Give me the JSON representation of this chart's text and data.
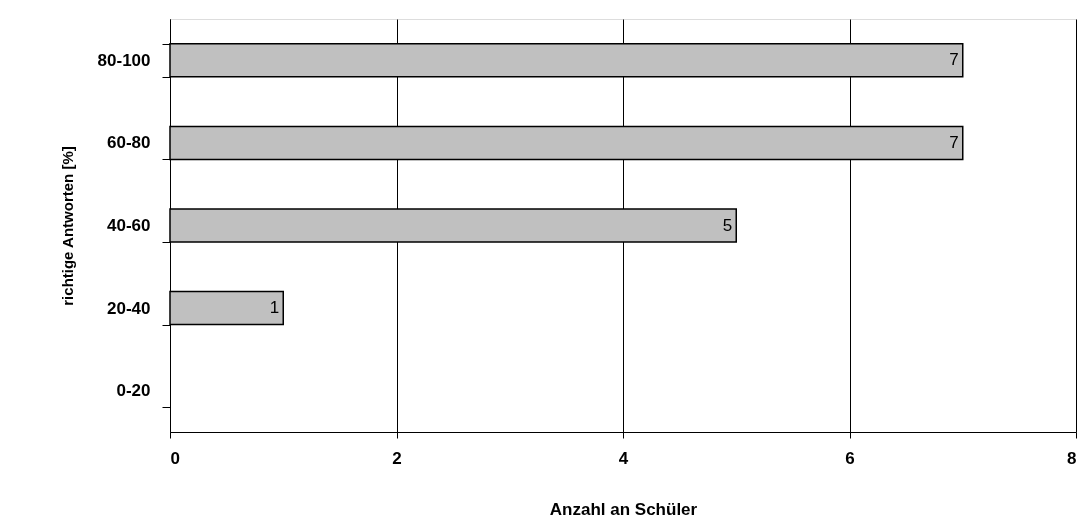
{
  "chart_data": {
    "type": "bar",
    "orientation": "horizontal",
    "categories": [
      "80-100",
      "60-80",
      "40-60",
      "20-40",
      "0-20"
    ],
    "values": [
      7,
      7,
      5,
      1,
      null
    ],
    "color": "#c0c0c0",
    "xlabel": "Anzahl an Schüler",
    "ylabel": "richtige Antworten [%]",
    "xlim": [
      0,
      8
    ],
    "xticks": [
      0,
      2,
      4,
      6,
      8
    ],
    "grid": "x",
    "data_labels": true
  }
}
